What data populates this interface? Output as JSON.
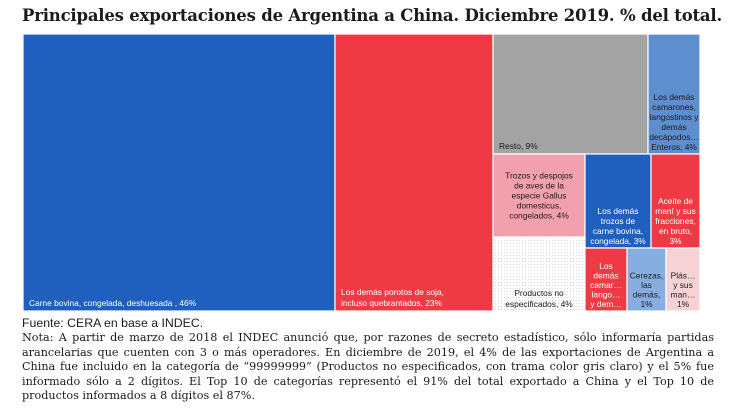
{
  "title": "Principales exportaciones de Argentina a China. Diciembre 2019. % del total.",
  "colors": {
    "blue": "#1f5fbd",
    "red": "#ef3a46",
    "gray": "#a3a3a3",
    "pink": "#f2a0ae",
    "light_blue": "#86aee0",
    "light_pink": "#f6d2d6",
    "mid_blue": "#5d8fd0",
    "white": "#ffffff"
  },
  "chart_data": {
    "type": "treemap",
    "items": [
      {
        "id": "carne-bovina",
        "label": [
          "Carne bovina, congelada, deshuesada , 46%"
        ],
        "value": 46,
        "color": "blue",
        "text_color": "#ffffff"
      },
      {
        "id": "porotos-soja",
        "label": [
          "Los demás porotos de soja,",
          "incluso quebrantados, 23%"
        ],
        "value": 23,
        "color": "red",
        "text_color": "#ffffff"
      },
      {
        "id": "resto",
        "label": [
          "Resto, 9%"
        ],
        "value": 9,
        "color": "gray",
        "text_color": "#1a1a1a"
      },
      {
        "id": "camarones",
        "label": [
          "Los demás",
          "camarones,",
          "langostinos y",
          "demás",
          "decápodos…",
          "Enteros, 4%"
        ],
        "value": 4,
        "color": "mid_blue",
        "text_color": "#1a1a1a"
      },
      {
        "id": "trozos-aves",
        "label": [
          "Trozos y despojos",
          "de aves de la",
          "especie Gallus",
          "domesticus,",
          "congelados, 4%"
        ],
        "value": 4,
        "color": "pink",
        "text_color": "#1a1a1a"
      },
      {
        "id": "trozos-bovina",
        "label": [
          "Los demás",
          "trozos de",
          "carne bovina,",
          "congelada, 3%"
        ],
        "value": 3,
        "color": "blue",
        "text_color": "#ffffff"
      },
      {
        "id": "aceite-mani",
        "label": [
          "Aceite de",
          "maní y sus",
          "fracciones,",
          "en bruto,",
          "3%"
        ],
        "value": 3,
        "color": "red",
        "text_color": "#ffffff"
      },
      {
        "id": "no-especificados",
        "label": [
          "Productos no",
          "especificados, 4%"
        ],
        "value": 4,
        "color": "white",
        "text_color": "#1a1a1a",
        "pattern": true
      },
      {
        "id": "camar-lango",
        "label": [
          "Los",
          "demás",
          "camar…",
          "lango…",
          "y dem…"
        ],
        "value": 1,
        "color": "red",
        "text_color": "#ffffff"
      },
      {
        "id": "cerezas",
        "label": [
          "Cerezas,",
          "las",
          "demás,",
          "1%"
        ],
        "value": 1,
        "color": "light_blue",
        "text_color": "#1a1a1a"
      },
      {
        "id": "plas",
        "label": [
          "Plás…",
          "y sus",
          "man…",
          "1%"
        ],
        "value": 1,
        "color": "light_pink",
        "text_color": "#1a1a1a"
      }
    ]
  },
  "source": "Fuente: CERA en base a INDEC.",
  "note": "Nota: A partir de marzo de 2018 el INDEC anunció que, por razones de secreto estadístico, sólo informaría partidas arancelarias que cuenten con 3 o más operadores. En diciembre de 2019, el 4% de las exportaciones de Argentina a China fue incluido en la categoría de “99999999” (Productos no especificados, con trama color gris claro) y el 5% fue informado sólo a 2 dígitos. El Top 10 de categorías representó el 91% del total exportado a China y el Top 10 de productos informados a 8 dígitos el 87%."
}
